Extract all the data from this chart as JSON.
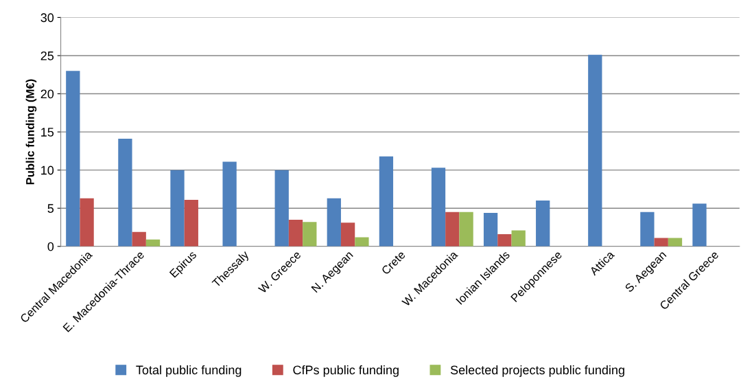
{
  "chart_data": {
    "type": "bar",
    "ylabel": "Public funding (M€)",
    "categories": [
      "Central Macedonia",
      "E. Macedonia-Thrace",
      "Epirus",
      "Thessaly",
      "W. Greece",
      "N. Aegean",
      "Crete",
      "W. Macedonia",
      "Ionian Islands",
      "Peloponnese",
      "Attica",
      "S. Aegean",
      "Central Greece"
    ],
    "series": [
      {
        "name": "Total public funding",
        "color": "#4f81bd",
        "values": [
          23.0,
          14.1,
          10.0,
          11.1,
          10.0,
          6.3,
          11.8,
          10.3,
          4.4,
          6.0,
          25.1,
          4.5,
          5.6
        ]
      },
      {
        "name": "CfPs public funding",
        "color": "#c0504d",
        "values": [
          6.3,
          1.9,
          6.1,
          null,
          3.5,
          3.1,
          null,
          4.5,
          1.6,
          null,
          null,
          1.1,
          null
        ]
      },
      {
        "name": "Selected projects public funding",
        "color": "#9bbb59",
        "values": [
          null,
          0.9,
          null,
          null,
          3.2,
          1.2,
          null,
          4.5,
          2.1,
          null,
          null,
          1.1,
          null
        ]
      }
    ],
    "ylim": [
      0,
      30
    ],
    "yticks": [
      0,
      5,
      10,
      15,
      20,
      25,
      30
    ],
    "grid": "y",
    "legend": "bottom"
  }
}
